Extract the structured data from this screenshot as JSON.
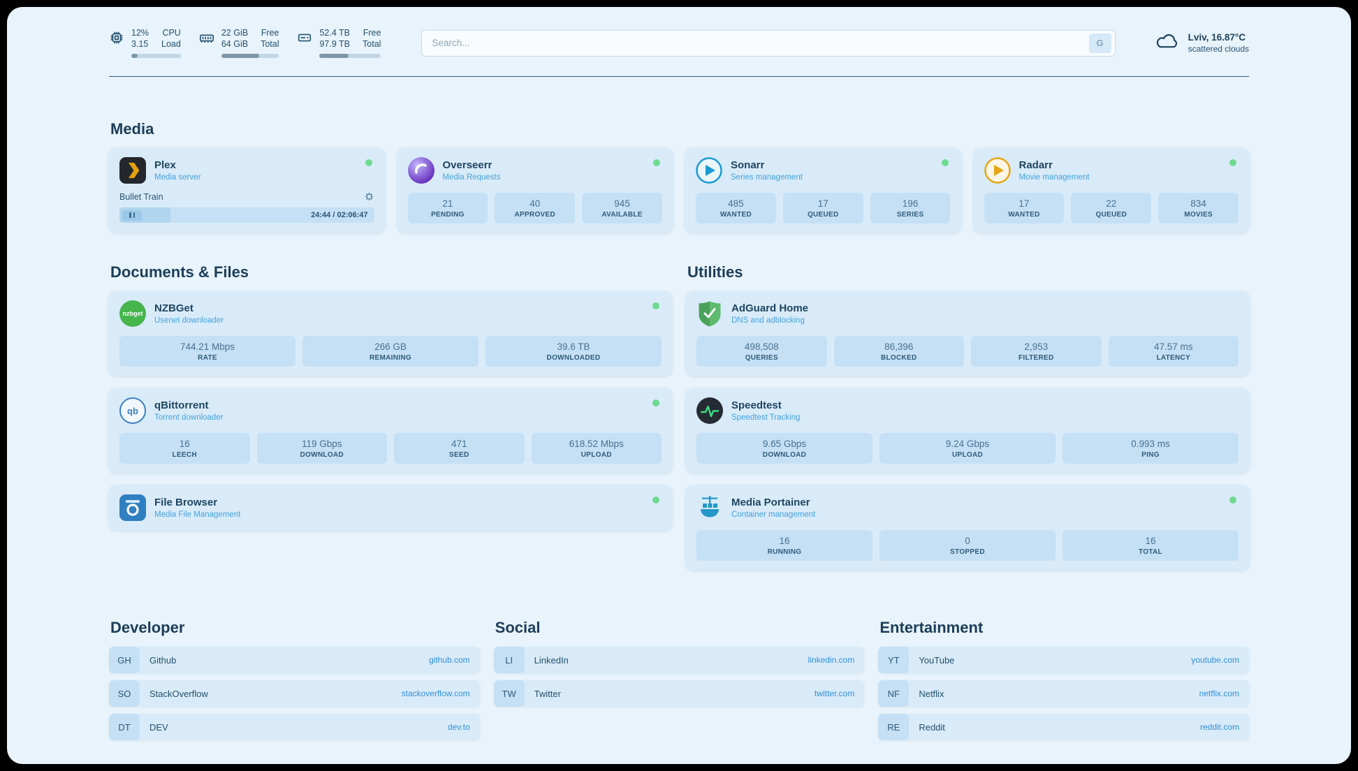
{
  "topbar": {
    "cpu": {
      "v1": "12%",
      "v2": "3.15",
      "c1": "CPU",
      "c2": "Load",
      "progress": 12
    },
    "ram": {
      "v1": "22 GiB",
      "v2": "64 GiB",
      "c1": "Free",
      "c2": "Total",
      "progress": 65
    },
    "disk": {
      "v1": "52.4 TB",
      "v2": "97.9 TB",
      "c1": "Free",
      "c2": "Total",
      "progress": 47
    },
    "search": {
      "placeholder": "Search...",
      "engine_label": "G"
    },
    "weather": {
      "location": "Lviv, 16.87°C",
      "description": "scattered clouds"
    }
  },
  "media": {
    "heading": "Media",
    "plex": {
      "name": "Plex",
      "subtitle": "Media server",
      "now_playing": "Bullet Train",
      "time": "24:44 / 02:06:47",
      "progress": 20
    },
    "overseerr": {
      "name": "Overseerr",
      "subtitle": "Media Requests",
      "stats": [
        {
          "value": "21",
          "label": "PENDING"
        },
        {
          "value": "40",
          "label": "APPROVED"
        },
        {
          "value": "945",
          "label": "AVAILABLE"
        }
      ]
    },
    "sonarr": {
      "name": "Sonarr",
      "subtitle": "Series management",
      "stats": [
        {
          "value": "485",
          "label": "WANTED"
        },
        {
          "value": "17",
          "label": "QUEUED"
        },
        {
          "value": "196",
          "label": "SERIES"
        }
      ]
    },
    "radarr": {
      "name": "Radarr",
      "subtitle": "Movie management",
      "stats": [
        {
          "value": "17",
          "label": "WANTED"
        },
        {
          "value": "22",
          "label": "QUEUED"
        },
        {
          "value": "834",
          "label": "MOVIES"
        }
      ]
    }
  },
  "documents": {
    "heading": "Documents & Files",
    "nzbget": {
      "name": "NZBGet",
      "subtitle": "Usenet downloader",
      "icon_text": "nzbget",
      "stats": [
        {
          "value": "744.21 Mbps",
          "label": "RATE"
        },
        {
          "value": "266 GB",
          "label": "REMAINING"
        },
        {
          "value": "39.6 TB",
          "label": "DOWNLOADED"
        }
      ]
    },
    "qbittorrent": {
      "name": "qBittorrent",
      "subtitle": "Torrent downloader",
      "icon_text": "qb",
      "stats": [
        {
          "value": "16",
          "label": "LEECH"
        },
        {
          "value": "119 Gbps",
          "label": "DOWNLOAD"
        },
        {
          "value": "471",
          "label": "SEED"
        },
        {
          "value": "618.52 Mbps",
          "label": "UPLOAD"
        }
      ]
    },
    "filebrowser": {
      "name": "File Browser",
      "subtitle": "Media File Management"
    }
  },
  "utilities": {
    "heading": "Utilities",
    "adguard": {
      "name": "AdGuard Home",
      "subtitle": "DNS and adblocking",
      "stats": [
        {
          "value": "498,508",
          "label": "QUERIES"
        },
        {
          "value": "86,396",
          "label": "BLOCKED"
        },
        {
          "value": "2,953",
          "label": "FILTERED"
        },
        {
          "value": "47.57 ms",
          "label": "LATENCY"
        }
      ]
    },
    "speedtest": {
      "name": "Speedtest",
      "subtitle": "Speedtest Tracking",
      "stats": [
        {
          "value": "9.65 Gbps",
          "label": "DOWNLOAD"
        },
        {
          "value": "9.24 Gbps",
          "label": "UPLOAD"
        },
        {
          "value": "0.993 ms",
          "label": "PING"
        }
      ]
    },
    "portainer": {
      "name": "Media Portainer",
      "subtitle": "Container management",
      "stats": [
        {
          "value": "16",
          "label": "RUNNING"
        },
        {
          "value": "0",
          "label": "STOPPED"
        },
        {
          "value": "16",
          "label": "TOTAL"
        }
      ]
    }
  },
  "bookmarks": [
    {
      "title": "Developer",
      "links": [
        {
          "abbr": "GH",
          "name": "Github",
          "url": "github.com"
        },
        {
          "abbr": "SO",
          "name": "StackOverflow",
          "url": "stackoverflow.com"
        },
        {
          "abbr": "DT",
          "name": "DEV",
          "url": "dev.to"
        }
      ]
    },
    {
      "title": "Social",
      "links": [
        {
          "abbr": "LI",
          "name": "LinkedIn",
          "url": "linkedin.com"
        },
        {
          "abbr": "TW",
          "name": "Twitter",
          "url": "twitter.com"
        }
      ]
    },
    {
      "title": "Entertainment",
      "links": [
        {
          "abbr": "YT",
          "name": "YouTube",
          "url": "youtube.com"
        },
        {
          "abbr": "NF",
          "name": "Netflix",
          "url": "netflix.com"
        },
        {
          "abbr": "RE",
          "name": "Reddit",
          "url": "reddit.com"
        }
      ]
    }
  ]
}
